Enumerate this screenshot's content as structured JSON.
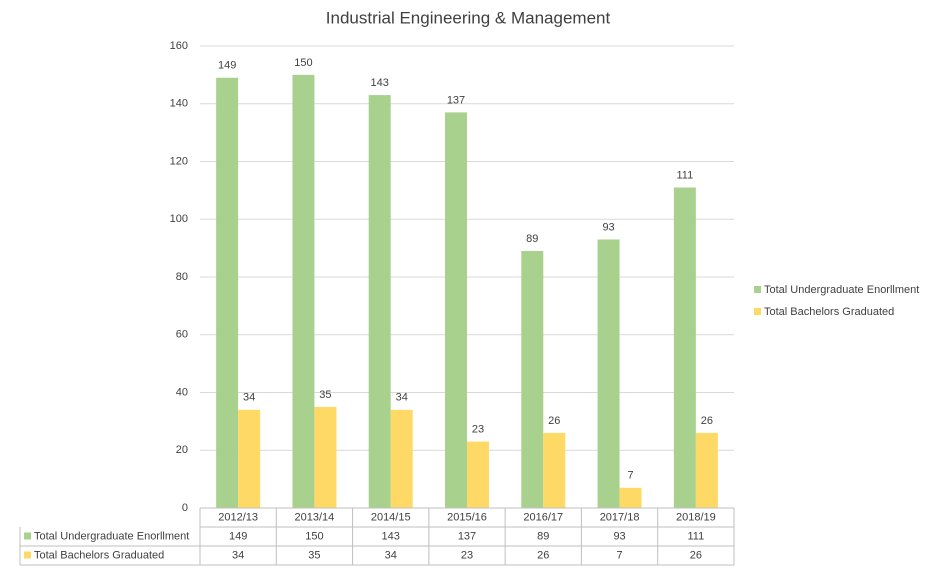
{
  "chart_data": {
    "type": "bar",
    "title": "Industrial Engineering & Management",
    "categories": [
      "2012/13",
      "2013/14",
      "2014/15",
      "2015/16",
      "2016/17",
      "2017/18",
      "2018/19"
    ],
    "series": [
      {
        "name": "Total Undergraduate Enorllment",
        "color": "#a9d18e",
        "values": [
          149,
          150,
          143,
          137,
          89,
          93,
          111
        ]
      },
      {
        "name": "Total Bachelors Graduated",
        "color": "#ffd966",
        "values": [
          34,
          35,
          34,
          23,
          26,
          7,
          26
        ]
      }
    ],
    "ylim": [
      0,
      160
    ],
    "yticks": [
      0,
      20,
      40,
      60,
      80,
      100,
      120,
      140,
      160
    ],
    "grid": true,
    "legend": "right",
    "data_labels": true,
    "data_table": true
  }
}
